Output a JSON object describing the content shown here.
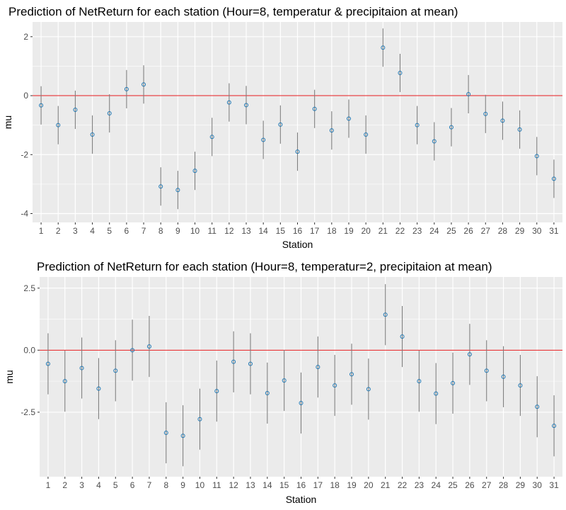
{
  "colors": {
    "panel_background": "#ebebeb",
    "grid_major": "#ffffff",
    "reference_line": "#e41a1c",
    "error_bar": "#7f7f7f",
    "point": "#1f78b4",
    "tick_text": "#4d4d4d"
  },
  "chart_data": [
    {
      "type": "scatter",
      "title": "Prediction of NetReturn for each station (Hour=8, temperatur & precipitaion at mean)",
      "xlabel": "Station",
      "ylabel": "mu",
      "categories": [
        "1",
        "2",
        "3",
        "4",
        "5",
        "6",
        "7",
        "8",
        "9",
        "10",
        "11",
        "12",
        "13",
        "14",
        "15",
        "16",
        "17",
        "18",
        "19",
        "20",
        "21",
        "22",
        "23",
        "24",
        "25",
        "26",
        "27",
        "28",
        "29",
        "30",
        "31"
      ],
      "values": [
        -0.33,
        -1.0,
        -0.48,
        -1.32,
        -0.6,
        0.22,
        0.38,
        -3.08,
        -3.2,
        -2.55,
        -1.4,
        -0.23,
        -0.32,
        -1.5,
        -0.98,
        -1.9,
        -0.45,
        -1.18,
        -0.78,
        -1.32,
        1.63,
        0.77,
        -1.0,
        -1.55,
        -1.07,
        0.05,
        -0.62,
        -0.85,
        -1.15,
        -2.05,
        -2.82
      ],
      "lower": [
        -0.98,
        -1.65,
        -1.13,
        -1.97,
        -1.25,
        -0.43,
        -0.27,
        -3.73,
        -3.85,
        -3.2,
        -2.05,
        -0.88,
        -0.97,
        -2.15,
        -1.63,
        -2.55,
        -1.1,
        -1.83,
        -1.43,
        -1.97,
        0.98,
        0.12,
        -1.65,
        -2.2,
        -1.72,
        -0.6,
        -1.27,
        -1.5,
        -1.8,
        -2.7,
        -3.47
      ],
      "upper": [
        0.32,
        -0.35,
        0.17,
        -0.67,
        0.05,
        0.87,
        1.03,
        -2.43,
        -2.55,
        -1.9,
        -0.75,
        0.42,
        0.33,
        -0.85,
        -0.33,
        -1.25,
        0.2,
        -0.53,
        -0.13,
        -0.67,
        2.28,
        1.42,
        -0.35,
        -0.9,
        -0.42,
        0.7,
        0.03,
        -0.2,
        -0.5,
        -1.4,
        -2.17
      ],
      "reference_y": 0,
      "yticks": [
        2,
        0,
        -2,
        -4
      ],
      "ytick_labels": [
        "2",
        "0",
        "-2",
        "-4"
      ],
      "ylim": [
        -4.3,
        2.5
      ],
      "grid": true,
      "legend": "none"
    },
    {
      "type": "scatter",
      "title": "Prediction of NetReturn for each station (Hour=8, temperatur=2, precipitaion at mean)",
      "xlabel": "Station",
      "ylabel": "mu",
      "categories": [
        "1",
        "2",
        "3",
        "4",
        "5",
        "6",
        "7",
        "8",
        "9",
        "10",
        "11",
        "12",
        "13",
        "14",
        "15",
        "16",
        "17",
        "18",
        "19",
        "20",
        "21",
        "22",
        "23",
        "24",
        "25",
        "26",
        "27",
        "28",
        "29",
        "30",
        "31"
      ],
      "values": [
        -0.55,
        -1.25,
        -0.72,
        -1.55,
        -0.83,
        0.0,
        0.15,
        -3.33,
        -3.45,
        -2.78,
        -1.65,
        -0.47,
        -0.55,
        -1.73,
        -1.22,
        -2.13,
        -0.68,
        -1.42,
        -0.97,
        -1.57,
        1.43,
        0.55,
        -1.25,
        -1.75,
        -1.33,
        -0.17,
        -0.83,
        -1.07,
        -1.42,
        -2.28,
        -3.05
      ],
      "lower": [
        -1.78,
        -2.48,
        -1.95,
        -2.78,
        -2.06,
        -1.23,
        -1.08,
        -4.56,
        -4.68,
        -4.01,
        -2.88,
        -1.7,
        -1.78,
        -2.96,
        -2.45,
        -3.36,
        -1.91,
        -2.65,
        -2.2,
        -2.8,
        0.2,
        -0.68,
        -2.48,
        -2.98,
        -2.56,
        -1.4,
        -2.06,
        -2.3,
        -2.65,
        -3.51,
        -4.28
      ],
      "upper": [
        0.68,
        -0.02,
        0.51,
        -0.32,
        0.4,
        1.23,
        1.38,
        -2.1,
        -2.22,
        -1.55,
        -0.42,
        0.76,
        0.68,
        -0.5,
        0.01,
        -0.9,
        0.55,
        -0.19,
        0.26,
        -0.34,
        2.66,
        1.78,
        -0.02,
        -0.52,
        -0.1,
        1.06,
        0.4,
        0.16,
        -0.19,
        -1.05,
        -1.82
      ],
      "reference_y": 0,
      "yticks": [
        2.5,
        0.0,
        -2.5
      ],
      "ytick_labels": [
        "2.5",
        "0.0",
        "-2.5"
      ],
      "ylim": [
        -5.1,
        2.95
      ],
      "grid": true,
      "legend": "none"
    }
  ]
}
